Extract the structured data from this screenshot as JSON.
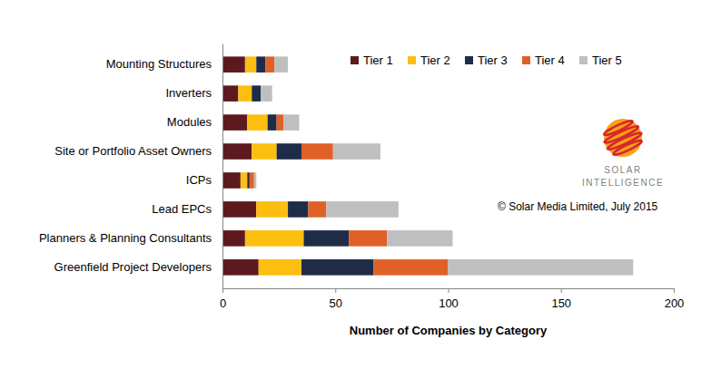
{
  "chart_data": {
    "type": "bar",
    "orientation": "horizontal",
    "stacked": true,
    "x_label": "Number of Companies by Category",
    "categories": [
      "Mounting Structures",
      "Inverters",
      "Modules",
      "Site or Portfolio Asset Owners",
      "ICPs",
      "Lead EPCs",
      "Planners & Planning Consultants",
      "Greenfield Project Developers"
    ],
    "series": [
      {
        "name": "Tier 1",
        "color": "#5c1a1f",
        "values": [
          10,
          7,
          11,
          13,
          8,
          15,
          10,
          16
        ]
      },
      {
        "name": "Tier 2",
        "color": "#fcbf10",
        "values": [
          5,
          6,
          9,
          11,
          3,
          14,
          26,
          19
        ]
      },
      {
        "name": "Tier 3",
        "color": "#1f2c48",
        "values": [
          4,
          4,
          4,
          11,
          1,
          9,
          20,
          32
        ]
      },
      {
        "name": "Tier 4",
        "color": "#df6128",
        "values": [
          4,
          0,
          3,
          14,
          2,
          8,
          17,
          33
        ]
      },
      {
        "name": "Tier 5",
        "color": "#bfbfbf",
        "values": [
          6,
          5,
          7,
          21,
          1,
          32,
          29,
          82
        ]
      }
    ],
    "xlim": [
      0,
      200
    ],
    "xticks": [
      0,
      50,
      100,
      150,
      200
    ],
    "grid": false,
    "legend": "top-right",
    "annotations": [
      "SOLAR",
      "INTELLIGENCE",
      "© Solar Media Limited, July 2015"
    ]
  }
}
